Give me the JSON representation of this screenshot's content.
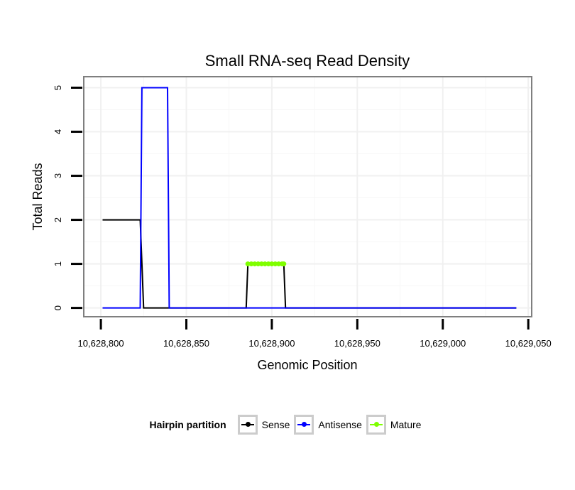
{
  "chart_data": {
    "type": "line",
    "title": "Small RNA-seq Read Density",
    "xlabel": "Genomic Position",
    "ylabel": "Total Reads",
    "xlim": [
      10628790,
      10629052
    ],
    "ylim": [
      -0.2,
      5.25
    ],
    "x_ticks": [
      10628800,
      10628850,
      10628900,
      10628950,
      10629000,
      10629050
    ],
    "x_tick_labels": [
      "10,628,800",
      "10,628,850",
      "10,628,900",
      "10,628,950",
      "10,629,000",
      "10,629,050"
    ],
    "y_ticks": [
      0,
      1,
      2,
      3,
      4,
      5
    ],
    "y_tick_labels": [
      "0",
      "1",
      "2",
      "3",
      "4",
      "5"
    ],
    "grid": true,
    "legend_position": "bottom",
    "series": [
      {
        "name": "Sense",
        "color": "#000000",
        "points": [
          [
            10628801,
            2
          ],
          [
            10628823,
            2
          ],
          [
            10628825,
            0
          ],
          [
            10628885,
            0
          ],
          [
            10628886,
            1
          ],
          [
            10628907,
            1
          ],
          [
            10628908,
            0
          ],
          [
            10629043,
            0
          ]
        ]
      },
      {
        "name": "Antisense",
        "color": "#0000ff",
        "points": [
          [
            10628801,
            0
          ],
          [
            10628823,
            0
          ],
          [
            10628824,
            5
          ],
          [
            10628839,
            5
          ],
          [
            10628840,
            0
          ],
          [
            10629043,
            0
          ]
        ]
      },
      {
        "name": "Mature",
        "color": "#7fff00",
        "points": [
          [
            10628886,
            1
          ],
          [
            10628888,
            1
          ],
          [
            10628890,
            1
          ],
          [
            10628892,
            1
          ],
          [
            10628894,
            1
          ],
          [
            10628896,
            1
          ],
          [
            10628898,
            1
          ],
          [
            10628900,
            1
          ],
          [
            10628902,
            1
          ],
          [
            10628904,
            1
          ],
          [
            10628906,
            1
          ],
          [
            10628907,
            1
          ]
        ]
      }
    ]
  },
  "legend": {
    "title": "Hairpin partition",
    "items": [
      {
        "label": "Sense",
        "color": "#000000"
      },
      {
        "label": "Antisense",
        "color": "#0000ff"
      },
      {
        "label": "Mature",
        "color": "#7fff00"
      }
    ]
  }
}
